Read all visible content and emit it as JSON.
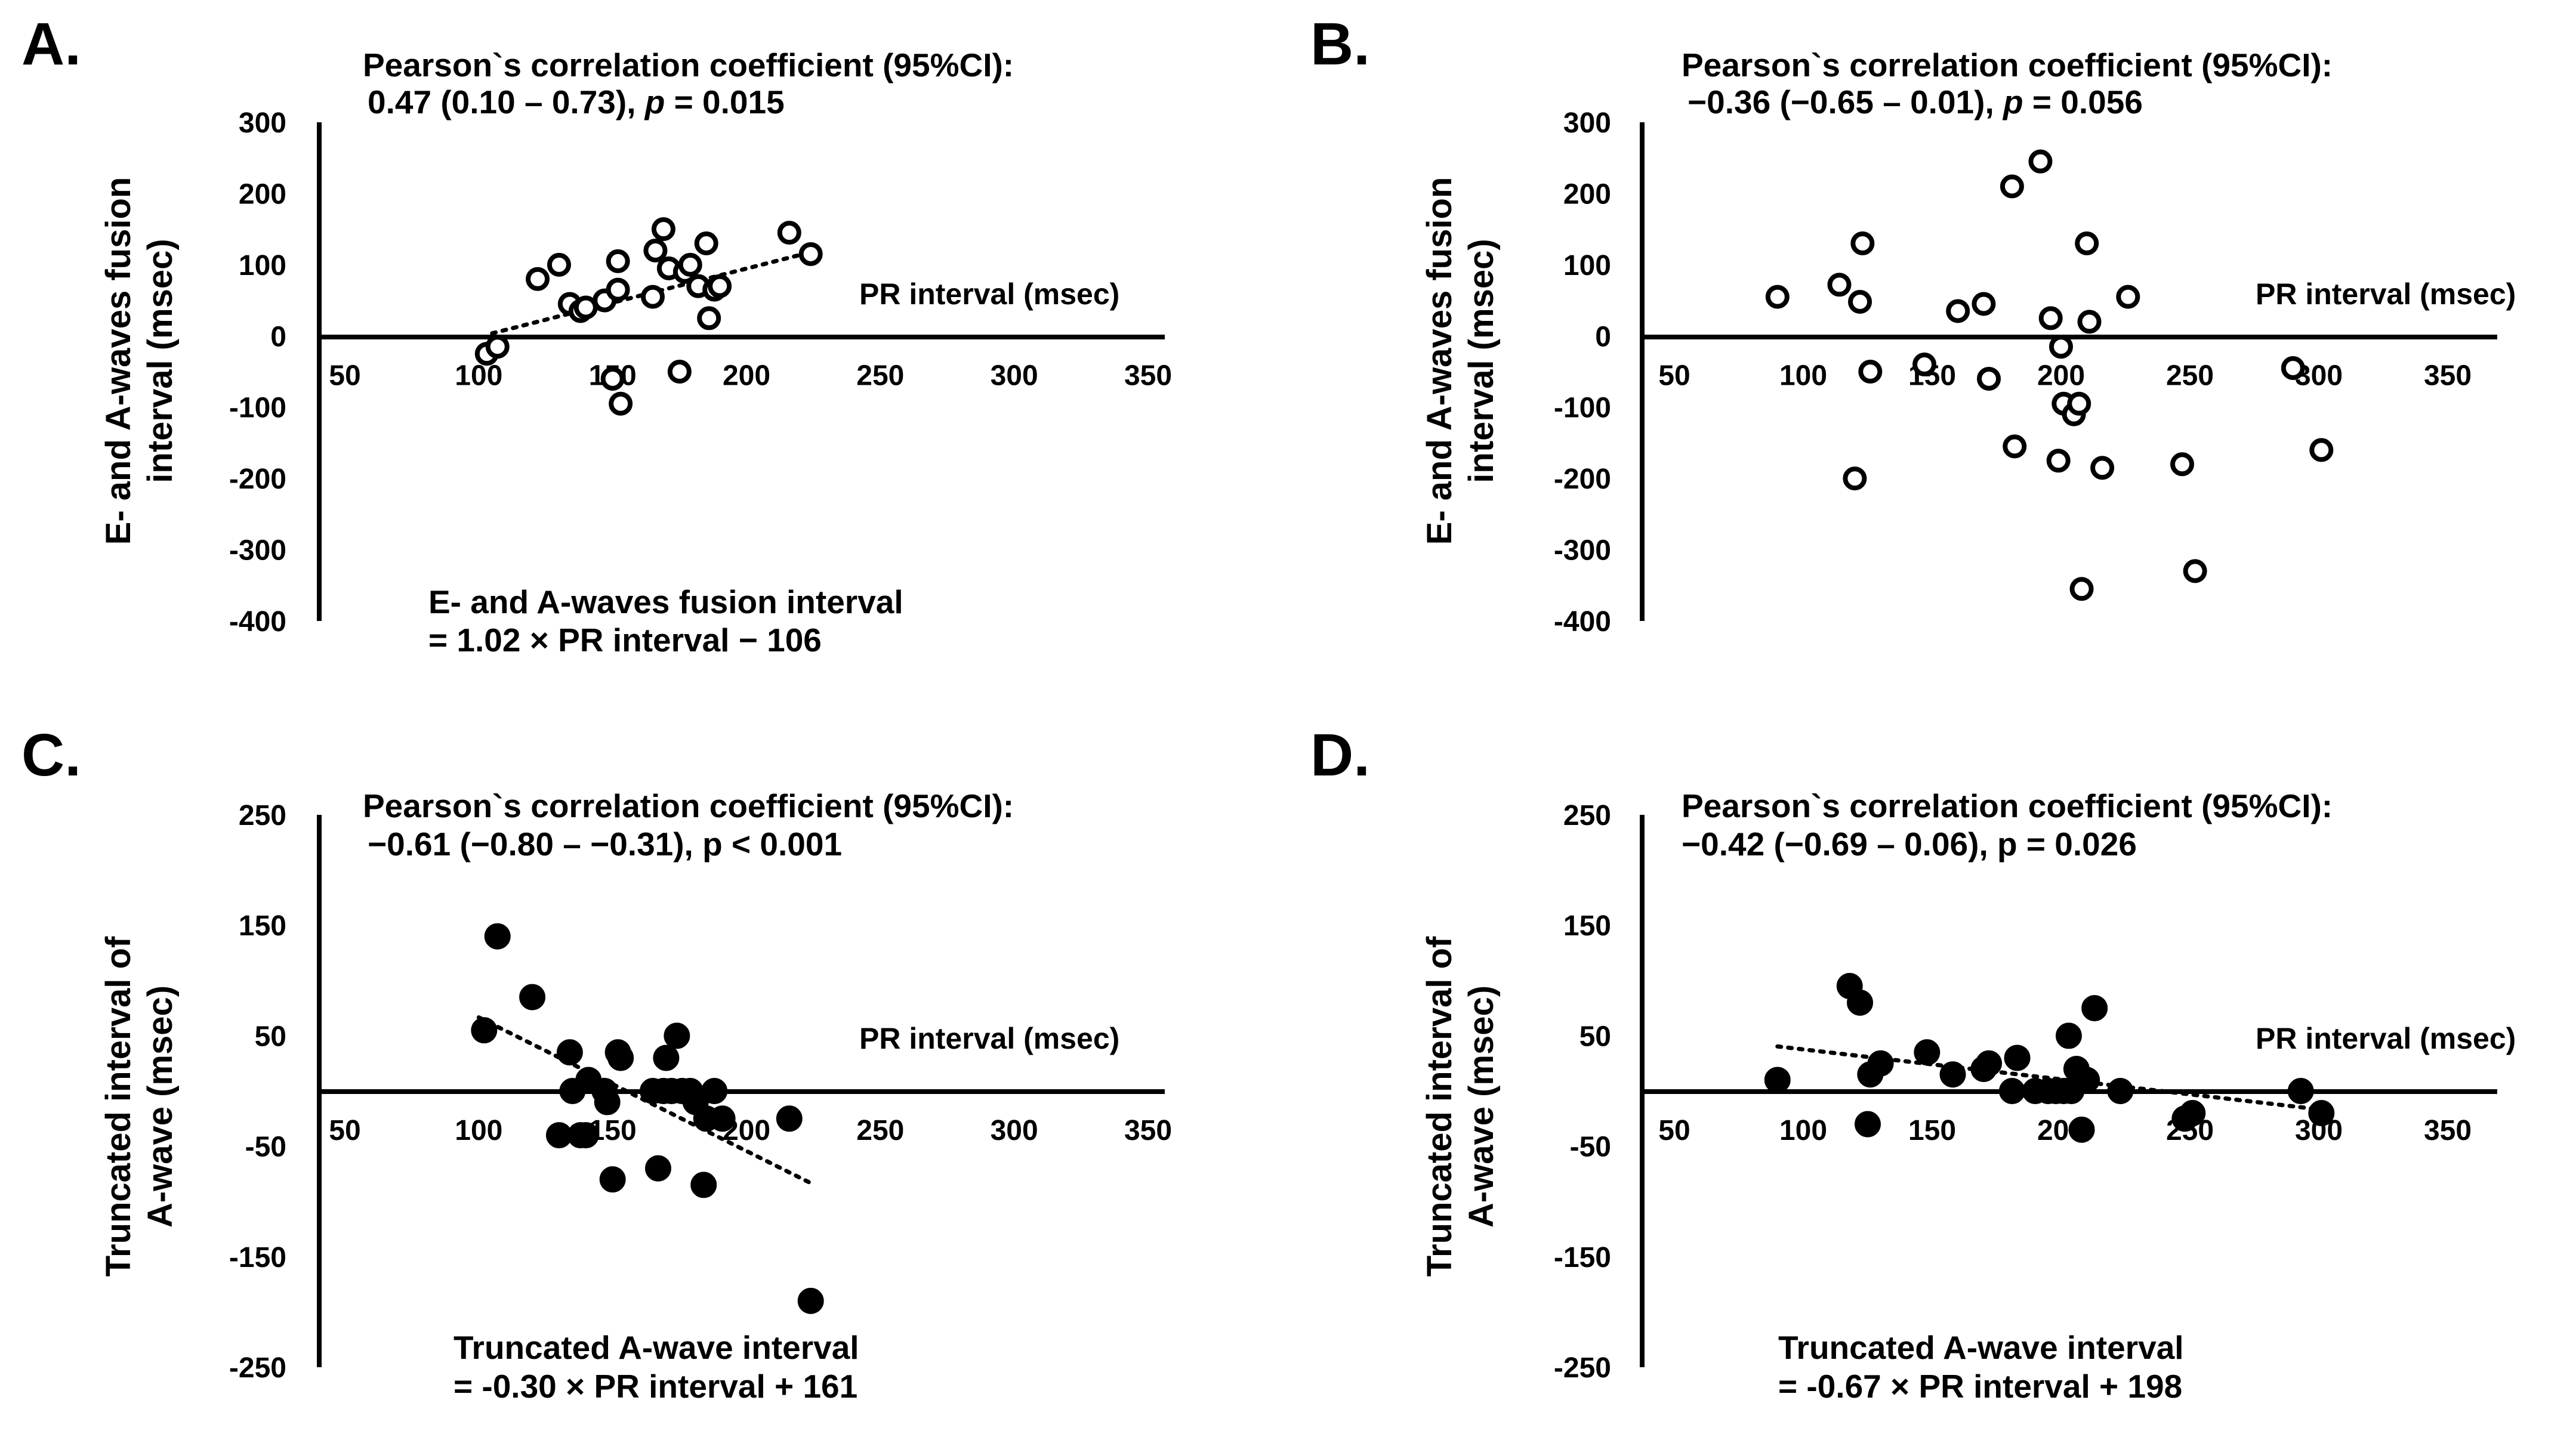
{
  "chart_data": [
    {
      "panel": "A.",
      "type": "scatter",
      "marker": "open",
      "corr_title": "Pearson`s correlation coefficient (95%CI):",
      "corr_value_pre": "0.47 (0.10 – 0.73), ",
      "corr_value_p": "p",
      "corr_value_post": " = 0.015",
      "ylabel_line1": "E- and A-waves fusion",
      "ylabel_line2": "interval (msec)",
      "xlabel": "PR interval (msec)",
      "xlim": [
        50,
        350
      ],
      "ylim": [
        -400,
        300
      ],
      "xticks": [
        50,
        100,
        150,
        200,
        250,
        300,
        350
      ],
      "yticks": [
        300,
        200,
        100,
        0,
        -100,
        -200,
        -300,
        -400
      ],
      "equation_line1": "E- and A-waves fusion interval",
      "equation_line2": "= 1.02 × PR interval − 106",
      "trend": {
        "x1": 105,
        "x2": 225
      },
      "x": [
        103,
        107,
        122,
        130,
        134,
        138,
        140,
        147,
        150,
        152,
        152,
        153,
        165,
        166,
        169,
        171,
        175,
        177,
        179,
        182,
        185,
        186,
        188,
        190,
        216,
        224
      ],
      "y": [
        -25,
        -15,
        80,
        100,
        45,
        35,
        40,
        50,
        -60,
        65,
        105,
        -95,
        55,
        120,
        150,
        95,
        -50,
        90,
        100,
        70,
        130,
        25,
        65,
        70,
        145,
        115
      ]
    },
    {
      "panel": "B.",
      "type": "scatter",
      "marker": "open",
      "corr_title": "Pearson`s correlation coefficient (95%CI):",
      "corr_value_pre": "−0.36 (−0.65 – 0.01), ",
      "corr_value_p": "p",
      "corr_value_post": " = 0.056",
      "ylabel_line1": "E- and A-waves fusion",
      "ylabel_line2": "interval (msec)",
      "xlabel": "PR interval (msec)",
      "xlim": [
        50,
        350
      ],
      "ylim": [
        -400,
        300
      ],
      "xticks": [
        50,
        100,
        150,
        200,
        250,
        300,
        350
      ],
      "yticks": [
        300,
        200,
        100,
        0,
        -100,
        -200,
        -300,
        -400
      ],
      "x": [
        90,
        114,
        120,
        122,
        123,
        126,
        147,
        160,
        170,
        172,
        181,
        182,
        192,
        196,
        199,
        200,
        201,
        205,
        207,
        208,
        210,
        211,
        216,
        226,
        247,
        252,
        290,
        301
      ],
      "y": [
        55,
        72,
        -200,
        48,
        130,
        -50,
        -40,
        35,
        45,
        -60,
        210,
        -155,
        245,
        25,
        -175,
        -15,
        -95,
        -110,
        -95,
        -355,
        130,
        20,
        -185,
        55,
        -180,
        -330,
        -45,
        -160
      ]
    },
    {
      "panel": "C.",
      "type": "scatter",
      "marker": "filled",
      "corr_title": "Pearson`s correlation coefficient (95%CI):",
      "corr_value_pre": "−0.61 (−0.80 – −0.31), p < 0.001",
      "corr_value_p": "",
      "corr_value_post": "",
      "ylabel_line1": "Truncated interval of",
      "ylabel_line2": "A-wave (msec)",
      "xlabel": "PR interval (msec)",
      "xlim": [
        50,
        350
      ],
      "ylim": [
        -250,
        250
      ],
      "xticks": [
        50,
        100,
        150,
        200,
        250,
        300,
        350
      ],
      "yticks": [
        250,
        150,
        50,
        -50,
        -150,
        -250
      ],
      "equation_line1": "Truncated A-wave interval",
      "equation_line2": "= -0.30 × PR interval + 161",
      "trend": {
        "x1": 100,
        "x2": 225
      },
      "x": [
        102,
        107,
        120,
        130,
        134,
        135,
        138,
        140,
        141,
        147,
        148,
        150,
        152,
        153,
        165,
        167,
        169,
        170,
        172,
        174,
        176,
        179,
        181,
        184,
        185,
        188,
        191,
        216,
        224
      ],
      "y": [
        55,
        140,
        85,
        -40,
        35,
        0,
        -40,
        -40,
        10,
        0,
        -10,
        -80,
        35,
        30,
        0,
        -70,
        0,
        30,
        0,
        50,
        0,
        0,
        -10,
        -85,
        -25,
        0,
        -25,
        -25,
        -190
      ]
    },
    {
      "panel": "D.",
      "type": "scatter",
      "marker": "filled",
      "corr_title": "Pearson`s correlation coefficient (95%CI):",
      "corr_value_pre": "−0.42 (−0.69 – 0.06), p = 0.026",
      "corr_value_p": "",
      "corr_value_post": "",
      "ylabel_line1": "Truncated interval of",
      "ylabel_line2": "A-wave (msec)",
      "xlabel": "PR interval (msec)",
      "xlim": [
        50,
        350
      ],
      "ylim": [
        -250,
        250
      ],
      "xticks": [
        50,
        100,
        150,
        200,
        250,
        300,
        350
      ],
      "yticks": [
        250,
        150,
        50,
        -50,
        -150,
        -250
      ],
      "equation_line1": "Truncated A-wave interval",
      "equation_line2": "= -0.67 × PR interval + 198",
      "trend": {
        "x1": 90,
        "x2": 300
      },
      "x": [
        90,
        118,
        122,
        125,
        126,
        130,
        148,
        158,
        170,
        172,
        181,
        183,
        190,
        195,
        198,
        201,
        203,
        204,
        206,
        208,
        210,
        213,
        223,
        248,
        251,
        293,
        301
      ],
      "y": [
        10,
        95,
        80,
        -30,
        15,
        25,
        35,
        15,
        20,
        25,
        0,
        30,
        0,
        0,
        0,
        0,
        50,
        0,
        20,
        -35,
        10,
        75,
        0,
        -25,
        -20,
        0,
        -20
      ]
    }
  ]
}
